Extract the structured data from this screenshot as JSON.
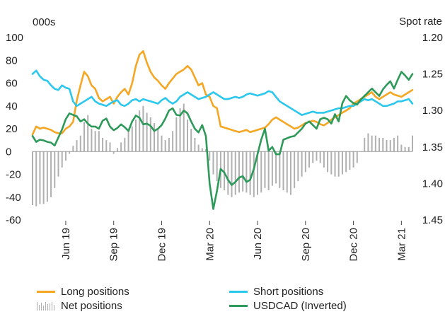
{
  "chart_data": {
    "type": "line",
    "left_axis_title": "000s",
    "right_axis_title": "Spot rate",
    "left_ticks": [
      "100",
      "80",
      "60",
      "40",
      "20",
      "0",
      "-20",
      "-40",
      "-60"
    ],
    "left_tick_values": [
      100,
      80,
      60,
      40,
      20,
      0,
      -20,
      -40,
      -60
    ],
    "right_ticks": [
      "1.20",
      "1.25",
      "1.30",
      "1.35",
      "1.40",
      "1.45"
    ],
    "right_tick_values": [
      1.2,
      1.25,
      1.3,
      1.35,
      1.4,
      1.45
    ],
    "left_range": [
      -60,
      100
    ],
    "right_range_inverted": [
      1.2,
      1.45
    ],
    "x_labels": [
      "Jun 19",
      "Sep 19",
      "Dec 19",
      "Mar 20",
      "Jun 20",
      "Sep 20",
      "Dec 20",
      "Mar 21"
    ],
    "x_label_index": [
      9,
      22,
      35,
      48,
      61,
      74,
      87,
      100
    ],
    "n_weeks": 104,
    "colors": {
      "long": "#F5A623",
      "short": "#2BC7EC",
      "net": "#B0B0B0",
      "usdcad": "#2E9A5A"
    },
    "series": [
      {
        "name": "Long positions",
        "kind": "line",
        "axis": "left",
        "values": [
          15,
          22,
          20,
          21,
          20,
          19,
          17,
          16,
          16,
          20,
          22,
          26,
          45,
          58,
          70,
          66,
          58,
          55,
          47,
          44,
          46,
          48,
          42,
          48,
          52,
          55,
          50,
          60,
          75,
          85,
          88,
          78,
          70,
          65,
          62,
          58,
          55,
          60,
          64,
          68,
          70,
          72,
          75,
          72,
          65,
          58,
          60,
          50,
          48,
          40,
          38,
          22,
          21,
          20,
          19,
          18,
          17,
          18,
          19,
          17,
          18,
          19,
          20,
          21,
          24,
          28,
          30,
          28,
          26,
          24,
          22,
          20,
          21,
          23,
          25,
          26,
          27,
          26,
          24,
          23,
          25,
          28,
          30,
          32,
          34,
          36,
          38,
          42,
          44,
          46,
          48,
          50,
          52,
          48,
          46,
          48,
          50,
          52,
          50,
          49,
          48,
          50,
          52,
          54
        ]
      },
      {
        "name": "Short positions",
        "kind": "line",
        "axis": "left",
        "values": [
          68,
          71,
          66,
          63,
          62,
          58,
          55,
          54,
          58,
          56,
          55,
          44,
          40,
          42,
          44,
          46,
          48,
          44,
          42,
          41,
          40,
          42,
          44,
          45,
          41,
          40,
          42,
          45,
          46,
          44,
          46,
          45,
          44,
          43,
          42,
          45,
          47,
          44,
          42,
          44,
          48,
          50,
          52,
          50,
          48,
          46,
          47,
          48,
          50,
          52,
          50,
          48,
          46,
          46,
          47,
          48,
          47,
          48,
          50,
          51,
          50,
          49,
          50,
          51,
          53,
          52,
          48,
          44,
          42,
          40,
          38,
          36,
          34,
          32,
          33,
          34,
          35,
          34,
          34,
          34,
          35,
          36,
          37,
          38,
          38,
          39,
          40,
          40,
          42,
          44,
          46,
          45,
          46,
          44,
          42,
          40,
          40,
          41,
          42,
          44,
          44,
          45,
          46,
          42
        ]
      },
      {
        "name": "Net positions",
        "kind": "bar",
        "axis": "left",
        "values": [
          -47,
          -48,
          -46,
          -46,
          -44,
          -40,
          -32,
          -22,
          -14,
          -8,
          -2,
          5,
          10,
          14,
          26,
          32,
          20,
          18,
          18,
          12,
          10,
          8,
          -2,
          3,
          8,
          12,
          18,
          22,
          28,
          36,
          40,
          34,
          30,
          25,
          20,
          14,
          10,
          12,
          18,
          30,
          38,
          42,
          28,
          20,
          12,
          6,
          3,
          2,
          -8,
          -20,
          -26,
          -32,
          -34,
          -38,
          -40,
          -38,
          -36,
          -35,
          -36,
          -38,
          -40,
          -38,
          -36,
          -32,
          -34,
          -30,
          -28,
          -32,
          -34,
          -36,
          -38,
          -32,
          -26,
          -22,
          -18,
          -14,
          -10,
          -8,
          -10,
          -14,
          -18,
          -20,
          -22,
          -22,
          -20,
          -18,
          -16,
          -14,
          -10,
          0,
          12,
          16,
          14,
          14,
          12,
          12,
          10,
          10,
          12,
          14,
          6,
          4,
          4,
          14
        ]
      },
      {
        "name": "USDCAD (Inverted)",
        "kind": "line",
        "axis": "right",
        "values": [
          1.335,
          1.343,
          1.34,
          1.341,
          1.343,
          1.344,
          1.348,
          1.337,
          1.326,
          1.312,
          1.304,
          1.306,
          1.308,
          1.315,
          1.312,
          1.318,
          1.322,
          1.322,
          1.325,
          1.314,
          1.311,
          1.322,
          1.327,
          1.324,
          1.319,
          1.323,
          1.328,
          1.315,
          1.307,
          1.31,
          1.319,
          1.318,
          1.321,
          1.328,
          1.325,
          1.32,
          1.311,
          1.3,
          1.297,
          1.306,
          1.307,
          1.3,
          1.304,
          1.315,
          1.325,
          1.33,
          1.32,
          1.335,
          1.4,
          1.435,
          1.41,
          1.38,
          1.385,
          1.395,
          1.402,
          1.398,
          1.392,
          1.39,
          1.398,
          1.395,
          1.38,
          1.36,
          1.34,
          1.325,
          1.355,
          1.35,
          1.36,
          1.36,
          1.34,
          1.338,
          1.336,
          1.335,
          1.33,
          1.325,
          1.318,
          1.315,
          1.32,
          1.325,
          1.312,
          1.31,
          1.312,
          1.318,
          1.305,
          1.315,
          1.29,
          1.28,
          1.286,
          1.29,
          1.292,
          1.285,
          1.28,
          1.275,
          1.27,
          1.275,
          1.28,
          1.271,
          1.265,
          1.26,
          1.27,
          1.258,
          1.247,
          1.252,
          1.258,
          1.25
        ]
      }
    ]
  },
  "legend": {
    "long": "Long positions",
    "short": "Short positions",
    "net": "Net positions",
    "usdcad": "USDCAD (Inverted)"
  }
}
